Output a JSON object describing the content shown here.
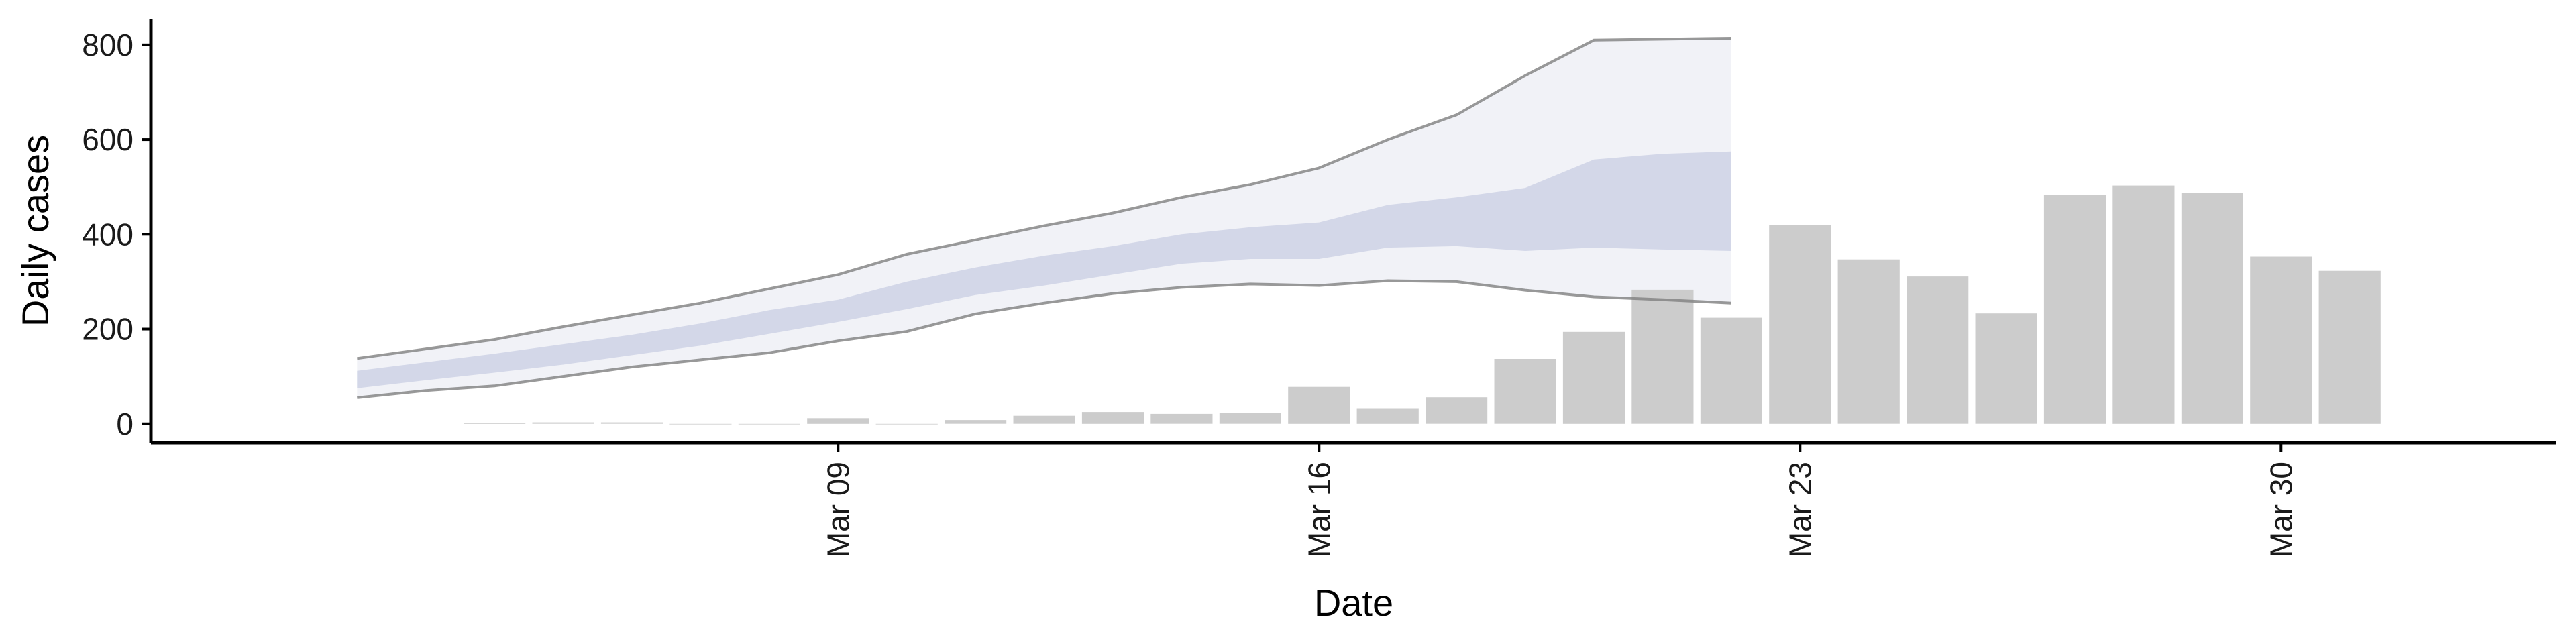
{
  "chart_data": {
    "type": "bar",
    "xlabel": "Date",
    "ylabel": "Daily cases",
    "ylim": [
      -40,
      855
    ],
    "y_ticks": [
      "0",
      "200",
      "400",
      "600",
      "800"
    ],
    "y_tick_values": [
      0,
      200,
      400,
      600,
      800
    ],
    "x_ticks": [
      "Mar 09",
      "Mar 16",
      "Mar 23",
      "Mar 30"
    ],
    "x_tick_dates": [
      "2020-03-09",
      "2020-03-16",
      "2020-03-23",
      "2020-03-30"
    ],
    "xlim": [
      "2020-02-28",
      "2020-04-03"
    ],
    "grid": false,
    "legend": "none",
    "colors": {
      "bar": "#cccccc",
      "outer_band": "#eef0f6",
      "inner_band": "#c8cde3",
      "bound_line": "#7f7f7f"
    },
    "bars": {
      "dates": [
        "2020-03-04",
        "2020-03-05",
        "2020-03-06",
        "2020-03-07",
        "2020-03-08",
        "2020-03-09",
        "2020-03-10",
        "2020-03-11",
        "2020-03-12",
        "2020-03-13",
        "2020-03-14",
        "2020-03-15",
        "2020-03-16",
        "2020-03-17",
        "2020-03-18",
        "2020-03-19",
        "2020-03-20",
        "2020-03-21",
        "2020-03-22",
        "2020-03-23",
        "2020-03-24",
        "2020-03-25",
        "2020-03-26",
        "2020-03-27",
        "2020-03-28",
        "2020-03-29",
        "2020-03-30",
        "2020-03-31"
      ],
      "values": [
        1,
        3,
        3,
        0,
        0,
        12,
        0,
        8,
        17,
        25,
        21,
        23,
        78,
        33,
        56,
        137,
        194,
        283,
        224,
        419,
        347,
        311,
        233,
        483,
        503,
        487,
        353,
        323
      ]
    },
    "forecast": {
      "dates": [
        "2020-03-02",
        "2020-03-03",
        "2020-03-04",
        "2020-03-05",
        "2020-03-06",
        "2020-03-07",
        "2020-03-08",
        "2020-03-09",
        "2020-03-10",
        "2020-03-11",
        "2020-03-12",
        "2020-03-13",
        "2020-03-14",
        "2020-03-15",
        "2020-03-16",
        "2020-03-17",
        "2020-03-18",
        "2020-03-19",
        "2020-03-20",
        "2020-03-21",
        "2020-03-22"
      ],
      "outer_low": [
        55,
        70,
        80,
        100,
        120,
        135,
        150,
        175,
        195,
        232,
        255,
        275,
        288,
        295,
        292,
        302,
        300,
        282,
        268,
        262,
        255
      ],
      "outer_high": [
        138,
        158,
        178,
        205,
        230,
        255,
        285,
        315,
        358,
        388,
        418,
        445,
        478,
        505,
        540,
        600,
        652,
        735,
        810,
        812,
        814
      ],
      "inner_low": [
        75,
        92,
        108,
        125,
        145,
        165,
        190,
        215,
        242,
        272,
        292,
        315,
        338,
        348,
        348,
        372,
        375,
        365,
        372,
        368,
        365
      ],
      "inner_high": [
        112,
        130,
        148,
        168,
        188,
        212,
        240,
        262,
        300,
        330,
        355,
        375,
        400,
        415,
        425,
        462,
        478,
        498,
        558,
        570,
        575
      ]
    }
  }
}
